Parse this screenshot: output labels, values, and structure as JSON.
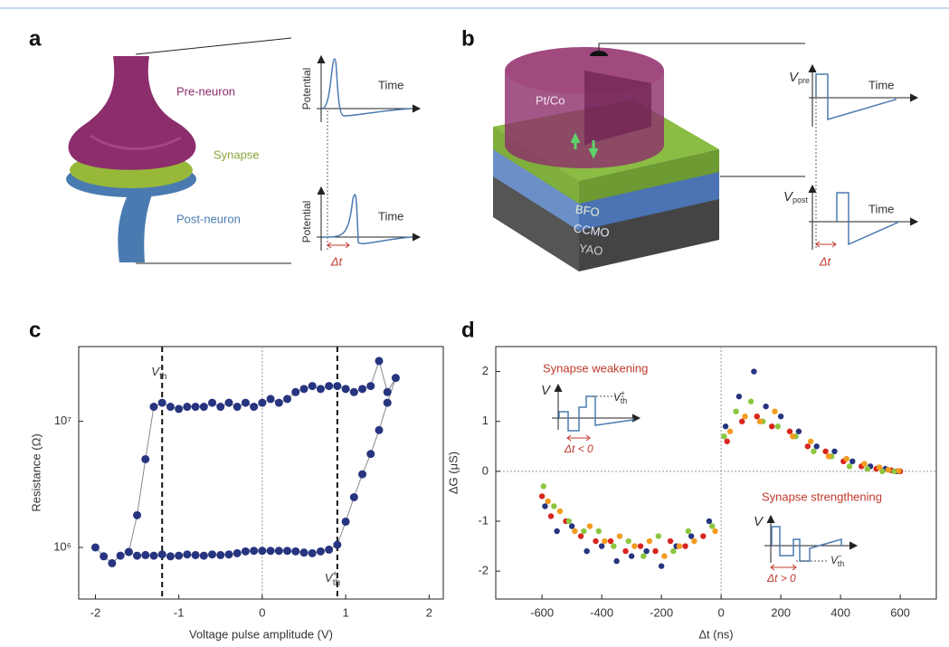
{
  "panels": {
    "a": {
      "label": "a",
      "pre_neuron": "Pre-neuron",
      "synapse": "Synapse",
      "post_neuron": "Post-neuron",
      "plots": [
        {
          "y_label": "Potential",
          "x_label": "Time"
        },
        {
          "y_label": "Potential",
          "x_label": "Time",
          "delta": "Δt"
        }
      ]
    },
    "b": {
      "label": "b",
      "electrode": "Pt/Co",
      "layers": [
        "BFO",
        "CCMO",
        "YAO"
      ],
      "plots": [
        {
          "y_label": {
            "symbol": "V",
            "sub": "pre"
          },
          "x_label": "Time"
        },
        {
          "y_label": {
            "symbol": "V",
            "sub": "post"
          },
          "x_label": "Time",
          "delta": "Δt"
        }
      ]
    }
  },
  "chart_data": [
    {
      "type": "line",
      "panel_label": "c",
      "x": [
        -2.0,
        -1.9,
        -1.8,
        -1.7,
        -1.6,
        -1.5,
        -1.4,
        -1.3,
        -1.2,
        -1.1,
        -1.0,
        -0.9,
        -0.8,
        -0.7,
        -0.6,
        -0.5,
        -0.4,
        -0.3,
        -0.2,
        -0.1,
        0.0,
        0.1,
        0.2,
        0.3,
        0.4,
        0.5,
        0.6,
        0.7,
        0.8,
        0.9,
        1.0,
        1.1,
        1.2,
        1.3,
        1.4,
        1.5,
        1.6,
        1.5,
        1.4,
        1.3,
        1.2,
        1.1,
        1.0,
        0.9,
        0.8,
        0.7,
        0.6,
        0.5,
        0.4,
        0.3,
        0.2,
        0.1,
        0.0,
        -0.1,
        -0.2,
        -0.3,
        -0.4,
        -0.5,
        -0.6,
        -0.7,
        -0.8,
        -0.9,
        -1.0,
        -1.1,
        -1.2,
        -1.3,
        -1.4,
        -1.5,
        -1.6
      ],
      "values": [
        1000000,
        850000,
        750000,
        860000,
        920000,
        860000,
        870000,
        860000,
        880000,
        850000,
        860000,
        880000,
        870000,
        860000,
        880000,
        870000,
        880000,
        900000,
        930000,
        940000,
        940000,
        940000,
        940000,
        940000,
        930000,
        910000,
        900000,
        930000,
        960000,
        1050000,
        1600000,
        2500000,
        3800000,
        5500000,
        8500000,
        14000000,
        22000000,
        17000000,
        30000000,
        19000000,
        18000000,
        17000000,
        18000000,
        19000000,
        19000000,
        18000000,
        19000000,
        18000000,
        17000000,
        15000000,
        14000000,
        15000000,
        14000000,
        13000000,
        14000000,
        13000000,
        14000000,
        13000000,
        14000000,
        13000000,
        13000000,
        13000000,
        12500000,
        13000000,
        14000000,
        13000000,
        5000000,
        1800000,
        920000
      ],
      "color": "#27347f",
      "line_color": "#8a8a8a",
      "xlim": [
        -2.2,
        2.17
      ],
      "ylim": [
        390000,
        39000000
      ],
      "log_y": true,
      "xticks": [
        -2,
        -1,
        0,
        1,
        2
      ],
      "yticks": [
        {
          "value": 1000000,
          "label": "10⁶"
        },
        {
          "value": 10000000,
          "label": "10⁷"
        }
      ],
      "xlabel": "Voltage pulse amplitude (V)",
      "ylabel": "Resistance (Ω)",
      "vlines": [
        {
          "value": -1.2,
          "symbol": "V",
          "sub": "th",
          "sup": "−"
        },
        {
          "value": 0.9,
          "symbol": "V",
          "sub": "th",
          "sup": "+"
        }
      ]
    },
    {
      "type": "scatter",
      "panel_label": "d",
      "series": [
        {
          "color": "#27347f",
          "x": [
            -590,
            -550,
            -500,
            -450,
            -400,
            -350,
            -300,
            -250,
            -200,
            -150,
            -100,
            -40,
            15,
            60,
            110,
            150,
            200,
            260,
            320,
            380,
            440,
            500,
            550,
            590
          ],
          "values": [
            -0.7,
            -1.2,
            -1.1,
            -1.6,
            -1.5,
            -1.8,
            -1.7,
            -1.6,
            -1.9,
            -1.5,
            -1.3,
            -1.0,
            0.9,
            1.5,
            2.0,
            1.3,
            1.1,
            0.8,
            0.5,
            0.4,
            0.2,
            0.1,
            0.05,
            0.0
          ]
        },
        {
          "color": "#d7261e",
          "x": [
            -600,
            -570,
            -520,
            -470,
            -420,
            -370,
            -320,
            -270,
            -220,
            -170,
            -120,
            -60,
            20,
            70,
            120,
            170,
            230,
            290,
            350,
            410,
            470,
            520,
            570,
            600
          ],
          "values": [
            -0.5,
            -0.9,
            -1.0,
            -1.3,
            -1.4,
            -1.4,
            -1.6,
            -1.5,
            -1.6,
            -1.4,
            -1.5,
            -1.3,
            0.6,
            1.0,
            1.1,
            0.9,
            0.8,
            0.5,
            0.4,
            0.2,
            0.1,
            0.05,
            0.02,
            0.0
          ]
        },
        {
          "color": "#8cc63f",
          "x": [
            -595,
            -560,
            -510,
            -460,
            -410,
            -360,
            -310,
            -260,
            -210,
            -160,
            -110,
            -30,
            10,
            50,
            100,
            140,
            190,
            250,
            310,
            370,
            430,
            490,
            540,
            580
          ],
          "values": [
            -0.3,
            -0.7,
            -1.0,
            -1.2,
            -1.2,
            -1.5,
            -1.4,
            -1.7,
            -1.3,
            -1.6,
            -1.2,
            -1.1,
            0.7,
            1.2,
            1.4,
            1.0,
            0.9,
            0.7,
            0.4,
            0.3,
            0.1,
            0.05,
            0.0,
            0.0
          ]
        },
        {
          "color": "#f39c1f",
          "x": [
            -580,
            -540,
            -490,
            -440,
            -390,
            -340,
            -290,
            -240,
            -190,
            -140,
            -90,
            -20,
            30,
            80,
            130,
            180,
            240,
            300,
            360,
            420,
            480,
            530,
            560,
            595
          ],
          "values": [
            -0.6,
            -0.8,
            -1.2,
            -1.1,
            -1.4,
            -1.3,
            -1.5,
            -1.4,
            -1.7,
            -1.5,
            -1.4,
            -1.2,
            0.8,
            1.1,
            1.0,
            1.2,
            0.7,
            0.6,
            0.3,
            0.25,
            0.15,
            0.08,
            0.03,
            0.01
          ]
        }
      ],
      "xlim": [
        -755,
        721
      ],
      "ylim": [
        -2.56,
        2.5
      ],
      "xticks": [
        -600,
        -400,
        -200,
        0,
        200,
        400,
        600
      ],
      "yticks": [
        -2,
        -1,
        0,
        1,
        2
      ],
      "xlabel": "Δt (ns)",
      "ylabel": "ΔG (μS)",
      "insets": [
        {
          "title": "Synapse weakening",
          "axis": "V",
          "threshold": {
            "symbol": "V",
            "sub": "th",
            "sup": "+"
          },
          "delta": "Δt < 0"
        },
        {
          "title": "Synapse strengthening",
          "axis": "V",
          "threshold": {
            "symbol": "V",
            "sub": "th",
            "sup": "−"
          },
          "delta": "Δt > 0"
        }
      ]
    }
  ]
}
